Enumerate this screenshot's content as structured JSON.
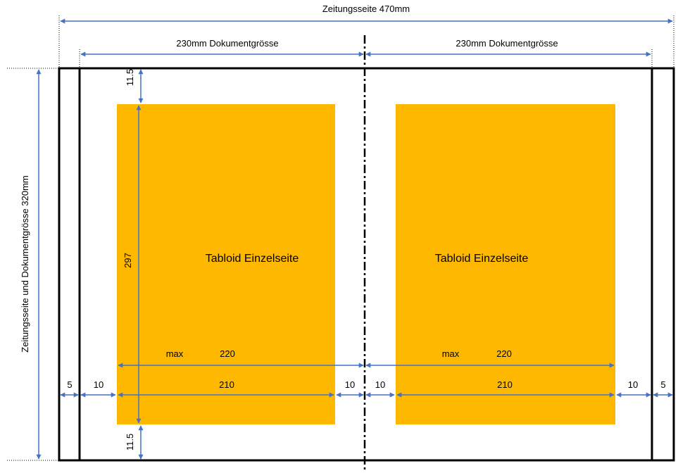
{
  "title": "Zeitungsseite 470mm",
  "doc_left_label": "230mm Dokumentgrösse",
  "doc_right_label": "230mm Dokumentgrösse",
  "vertical_label": "Zeitungsseite und Dokumentgrösse 320mm",
  "page_left": {
    "label": "Tabloid Einzelseite",
    "height_label": "297",
    "top_margin_label": "11.5",
    "bottom_margin_label": "11.5",
    "max_label": "max",
    "max_value": "220",
    "width_label": "210",
    "margin_left_label": "10",
    "margin_right_label": "10"
  },
  "page_right": {
    "label": "Tabloid Einzelseite",
    "max_label": "max",
    "max_value": "220",
    "width_label": "210",
    "margin_left_label": "10",
    "margin_right_label": "10"
  },
  "edge_left_label": "5",
  "edge_right_label": "5",
  "colors": {
    "page_fill": "#FFB800",
    "arrow": "#4472C4",
    "frame": "#000000"
  }
}
